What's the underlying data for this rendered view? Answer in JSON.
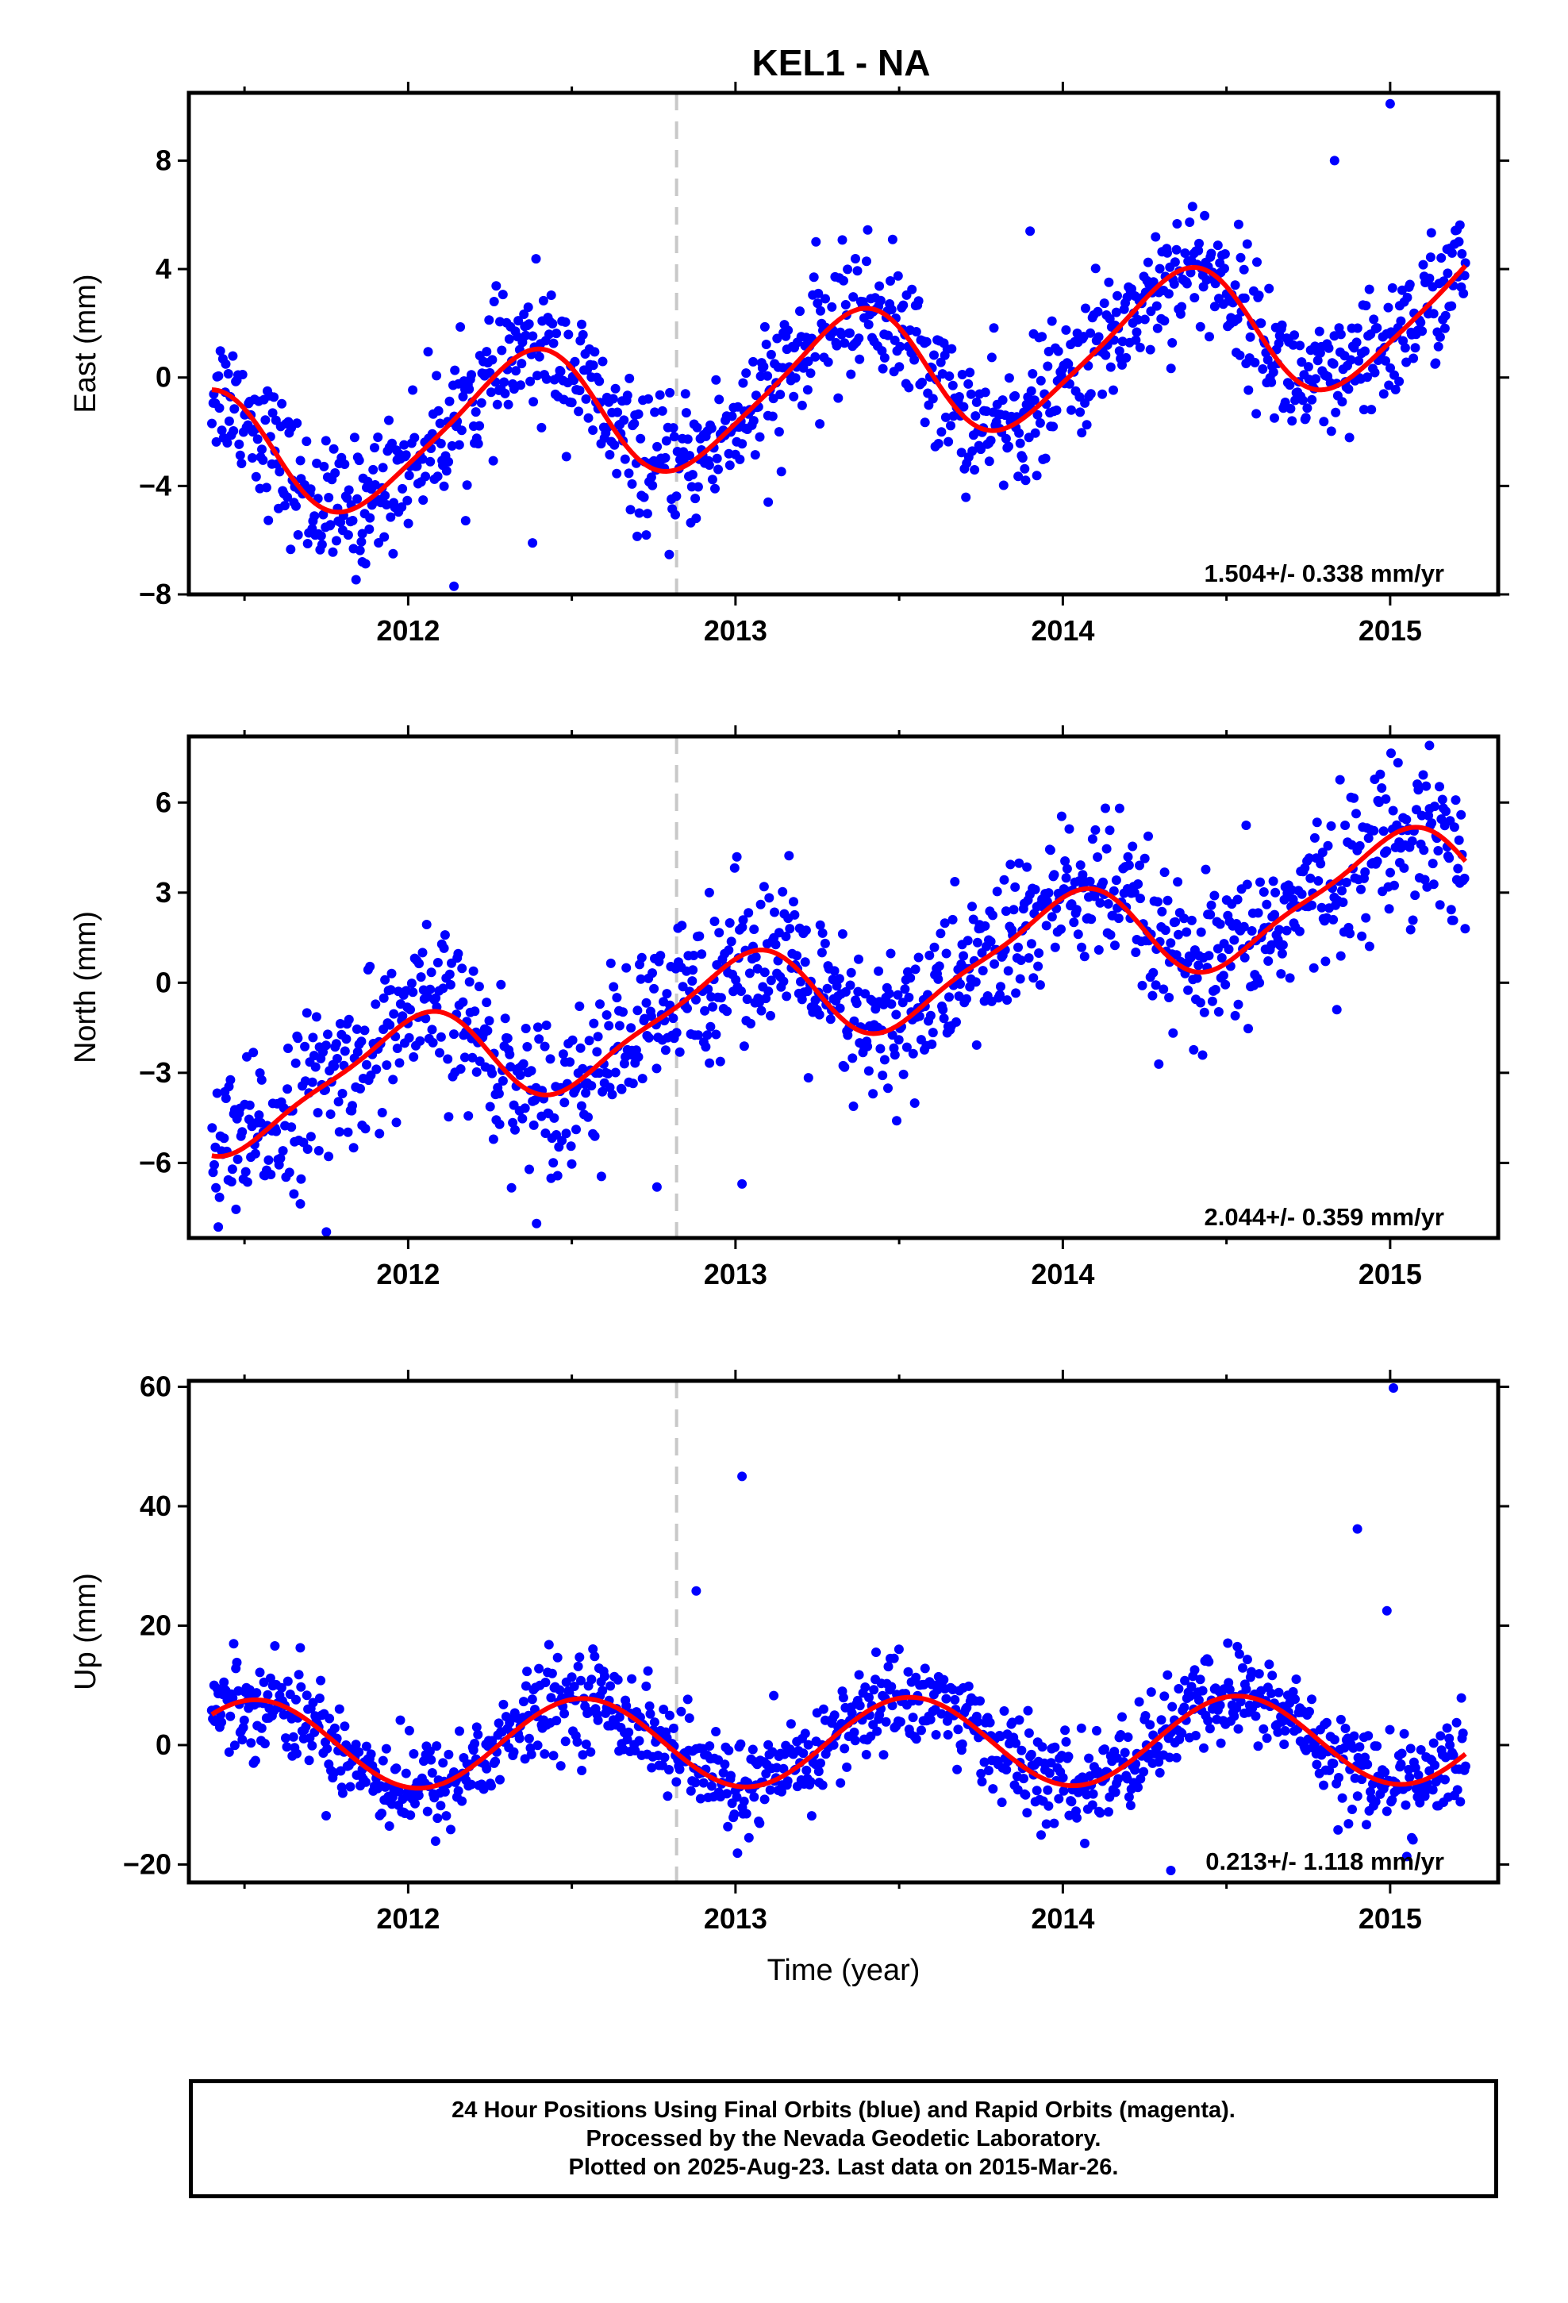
{
  "title": "KEL1 - NA",
  "caption": [
    "24 Hour Positions Using Final Orbits (blue) and Rapid Orbits (magenta).",
    "Processed by the Nevada Geodetic Laboratory.",
    "Plotted on 2025-Aug-23. Last data on 2015-Mar-26."
  ],
  "colors": {
    "points": "#0000ff",
    "fit": "#ff0000",
    "event_line": "#c8c8c8",
    "axes": "#000000"
  },
  "chart_data": [
    {
      "type": "scatter",
      "ylabel": "East (mm)",
      "xlabel": "",
      "rate_label": "1.504+/- 0.338 mm/yr",
      "xlim": [
        2011.33,
        2015.33
      ],
      "ylim": [
        -8,
        10.5
      ],
      "yticks": [
        -8,
        -4,
        0,
        4,
        8
      ],
      "xticks": [
        2012,
        2013,
        2014,
        2015
      ],
      "xtick_labels": [
        "2012",
        "2013",
        "2014",
        "2015"
      ],
      "event_line_x": 2012.82,
      "data_range": [
        2011.4,
        2015.23
      ],
      "grid": false,
      "fit": {
        "t0": 2013.3,
        "intercept": -0.2,
        "rate": 1.504,
        "annual": {
          "sin": 2.0,
          "cos": -1.4
        },
        "semiannual": {
          "sin": -0.2,
          "cos": 0.35
        }
      },
      "scatter_sigma": 1.2,
      "outliers": [
        {
          "x": 2015.0,
          "y": 10.1
        },
        {
          "x": 2012.14,
          "y": -7.7
        },
        {
          "x": 2011.86,
          "y": -6.8
        },
        {
          "x": 2012.38,
          "y": -6.1
        },
        {
          "x": 2013.1,
          "y": -4.6
        },
        {
          "x": 2013.9,
          "y": 5.4
        },
        {
          "x": 2014.83,
          "y": 8.0
        }
      ]
    },
    {
      "type": "scatter",
      "ylabel": "North (mm)",
      "xlabel": "",
      "rate_label": "2.044+/- 0.359 mm/yr",
      "xlim": [
        2011.33,
        2015.33
      ],
      "ylim": [
        -8.5,
        8.2
      ],
      "yticks": [
        -6,
        -3,
        0,
        3,
        6
      ],
      "xticks": [
        2012,
        2013,
        2014,
        2015
      ],
      "xtick_labels": [
        "2012",
        "2013",
        "2014",
        "2015"
      ],
      "event_line_x": 2012.82,
      "data_range": [
        2011.4,
        2015.23
      ],
      "grid": false,
      "fit": {
        "t0": 2013.3,
        "intercept": -0.2,
        "rate": 2.044,
        "annual": {
          "sin": 0.0,
          "cos": 1.6
        },
        "semiannual": {
          "sin": 0.4,
          "cos": 0.0
        }
      },
      "scatter_sigma": 1.3,
      "outliers": [
        {
          "x": 2015.12,
          "y": 7.9
        },
        {
          "x": 2011.75,
          "y": -8.3
        },
        {
          "x": 2012.76,
          "y": -6.8
        },
        {
          "x": 2013.02,
          "y": -6.7
        },
        {
          "x": 2012.92,
          "y": 3.0
        },
        {
          "x": 2013.42,
          "y": -3.7
        }
      ]
    },
    {
      "type": "scatter",
      "ylabel": "Up (mm)",
      "xlabel": "Time (year)",
      "rate_label": "0.213+/- 1.118 mm/yr",
      "xlim": [
        2011.33,
        2015.33
      ],
      "ylim": [
        -23,
        61
      ],
      "yticks": [
        -20,
        0,
        20,
        40,
        60
      ],
      "xticks": [
        2012,
        2013,
        2014,
        2015
      ],
      "xtick_labels": [
        "2012",
        "2013",
        "2014",
        "2015"
      ],
      "event_line_x": 2012.82,
      "data_range": [
        2011.4,
        2015.23
      ],
      "grid": false,
      "fit": {
        "t0": 2013.3,
        "intercept": 0.5,
        "rate": 0.213,
        "annual": {
          "sin": -1.5,
          "cos": -7.3
        },
        "semiannual": {
          "sin": 0.0,
          "cos": 0.0
        }
      },
      "scatter_sigma": 4.0,
      "outliers": [
        {
          "x": 2015.01,
          "y": 59.8
        },
        {
          "x": 2013.02,
          "y": 45.0
        },
        {
          "x": 2014.9,
          "y": 36.2
        },
        {
          "x": 2012.88,
          "y": 25.8
        },
        {
          "x": 2014.33,
          "y": -21.0
        },
        {
          "x": 2014.99,
          "y": 22.5
        }
      ]
    }
  ]
}
